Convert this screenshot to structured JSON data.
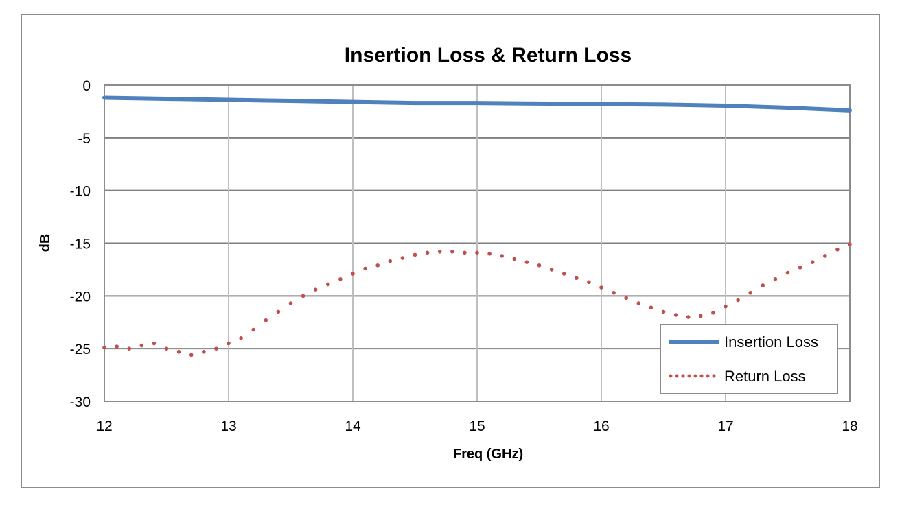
{
  "chart_data": {
    "type": "line",
    "title": "Insertion Loss & Return Loss",
    "xlabel": "Freq (GHz)",
    "ylabel": "dB",
    "xlim": [
      12,
      18
    ],
    "ylim": [
      -30,
      0
    ],
    "x_ticks": [
      12,
      13,
      14,
      15,
      16,
      17,
      18
    ],
    "y_ticks": [
      0,
      -5,
      -10,
      -15,
      -20,
      -25,
      -30
    ],
    "grid": true,
    "legend_position": "bottom-right",
    "series": [
      {
        "name": "Insertion Loss",
        "style": "solid",
        "color": "#4f81bd",
        "x": [
          12.0,
          12.5,
          13.0,
          13.5,
          14.0,
          14.5,
          15.0,
          15.5,
          16.0,
          16.5,
          17.0,
          17.5,
          18.0
        ],
        "y": [
          -1.2,
          -1.3,
          -1.4,
          -1.5,
          -1.6,
          -1.7,
          -1.7,
          -1.75,
          -1.8,
          -1.85,
          -1.95,
          -2.15,
          -2.4
        ]
      },
      {
        "name": "Return Loss",
        "style": "dotted",
        "color": "#c0504d",
        "x": [
          12.0,
          12.1,
          12.2,
          12.3,
          12.4,
          12.5,
          12.6,
          12.7,
          12.8,
          12.9,
          13.0,
          13.1,
          13.2,
          13.3,
          13.4,
          13.5,
          13.6,
          13.7,
          13.8,
          13.9,
          14.0,
          14.1,
          14.2,
          14.3,
          14.4,
          14.5,
          14.6,
          14.7,
          14.8,
          14.9,
          15.0,
          15.1,
          15.2,
          15.3,
          15.4,
          15.5,
          15.6,
          15.7,
          15.8,
          15.9,
          16.0,
          16.1,
          16.2,
          16.3,
          16.4,
          16.5,
          16.6,
          16.7,
          16.8,
          16.9,
          17.0,
          17.1,
          17.2,
          17.3,
          17.4,
          17.5,
          17.6,
          17.7,
          17.8,
          17.9,
          18.0
        ],
        "y": [
          -24.9,
          -24.8,
          -25.0,
          -24.7,
          -24.5,
          -25.0,
          -25.3,
          -25.6,
          -25.3,
          -25.0,
          -24.5,
          -24.0,
          -23.2,
          -22.3,
          -21.5,
          -20.7,
          -20.0,
          -19.4,
          -18.9,
          -18.4,
          -17.9,
          -17.4,
          -17.1,
          -16.7,
          -16.4,
          -16.1,
          -15.9,
          -15.8,
          -15.8,
          -15.9,
          -15.9,
          -16.0,
          -16.2,
          -16.5,
          -16.8,
          -17.1,
          -17.5,
          -17.9,
          -18.3,
          -18.7,
          -19.2,
          -19.7,
          -20.2,
          -20.7,
          -21.1,
          -21.5,
          -21.8,
          -22.0,
          -21.9,
          -21.6,
          -21.0,
          -20.4,
          -19.7,
          -19.0,
          -18.4,
          -17.8,
          -17.3,
          -16.8,
          -16.2,
          -15.6,
          -15.1
        ]
      }
    ]
  }
}
